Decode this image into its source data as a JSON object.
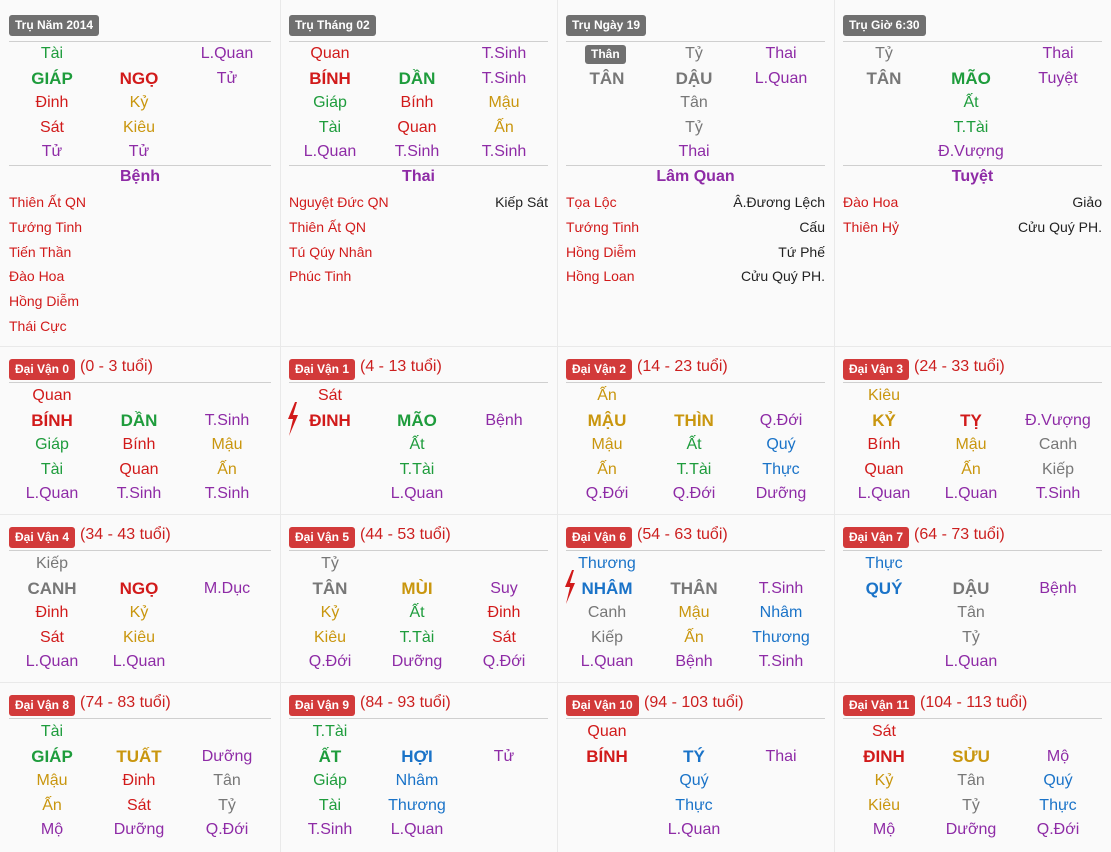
{
  "colors": {
    "green": "#1e9c3c",
    "red": "#d11a1a",
    "gold": "#c9960e",
    "purple": "#8e2ba6",
    "blue": "#1a73c8",
    "gray": "#777777",
    "black": "#222222",
    "phase": "#8e2ba6"
  },
  "pillars": [
    {
      "title": "Trụ Năm 2014",
      "rows": [
        [
          {
            "t": "Tài",
            "c": "green"
          },
          null,
          {
            "t": "L.Quan",
            "c": "purple"
          }
        ],
        [
          {
            "t": "GIÁP",
            "c": "green",
            "b": true
          },
          {
            "t": "NGỌ",
            "c": "red",
            "b": true
          },
          {
            "t": "Tử",
            "c": "purple"
          }
        ],
        [
          {
            "t": "Đinh",
            "c": "red"
          },
          {
            "t": "Kỷ",
            "c": "gold"
          },
          null
        ],
        [
          {
            "t": "Sát",
            "c": "red"
          },
          {
            "t": "Kiêu",
            "c": "gold"
          },
          null
        ],
        [
          {
            "t": "Tử",
            "c": "purple"
          },
          {
            "t": "Tử",
            "c": "purple"
          },
          null
        ]
      ],
      "phase": "Bệnh",
      "left_stars": [
        "Thiên Ất QN",
        "Tướng Tinh",
        "Tiến Thần",
        "Đào Hoa",
        "Hồng Diễm",
        "Thái Cực"
      ],
      "right_stars": []
    },
    {
      "title": "Trụ Tháng 02",
      "rows": [
        [
          {
            "t": "Quan",
            "c": "red"
          },
          null,
          {
            "t": "T.Sinh",
            "c": "purple"
          }
        ],
        [
          {
            "t": "BÍNH",
            "c": "red",
            "b": true
          },
          {
            "t": "DẦN",
            "c": "green",
            "b": true
          },
          {
            "t": "T.Sinh",
            "c": "purple"
          }
        ],
        [
          {
            "t": "Giáp",
            "c": "green"
          },
          {
            "t": "Bính",
            "c": "red"
          },
          {
            "t": "Mậu",
            "c": "gold"
          }
        ],
        [
          {
            "t": "Tài",
            "c": "green"
          },
          {
            "t": "Quan",
            "c": "red"
          },
          {
            "t": "Ấn",
            "c": "gold"
          }
        ],
        [
          {
            "t": "L.Quan",
            "c": "purple"
          },
          {
            "t": "T.Sinh",
            "c": "purple"
          },
          {
            "t": "T.Sinh",
            "c": "purple"
          }
        ]
      ],
      "phase": "Thai",
      "left_stars": [
        "Nguyệt Đức QN",
        "Thiên Ất QN",
        "Tú Qúy Nhân",
        "Phúc Tinh"
      ],
      "right_stars": [
        "Kiếp Sát"
      ]
    },
    {
      "title": "Trụ Ngày 19",
      "than": "Thân",
      "rows": [
        [
          null,
          {
            "t": "Tỷ",
            "c": "gray"
          },
          {
            "t": "Thai",
            "c": "purple"
          }
        ],
        [
          {
            "t": "TÂN",
            "c": "gray",
            "b": true
          },
          {
            "t": "DẬU",
            "c": "gray",
            "b": true
          },
          {
            "t": "L.Quan",
            "c": "purple"
          }
        ],
        [
          null,
          {
            "t": "Tân",
            "c": "gray"
          },
          null
        ],
        [
          null,
          {
            "t": "Tỷ",
            "c": "gray"
          },
          null
        ],
        [
          null,
          {
            "t": "Thai",
            "c": "purple"
          },
          null
        ]
      ],
      "phase": "Lâm Quan",
      "left_stars": [
        "Tọa Lộc",
        "Tướng Tinh",
        "Hồng Diễm",
        "Hồng Loan"
      ],
      "right_stars": [
        "Â.Đương Lệch",
        "Cấu",
        "Tứ Phế",
        "Cửu Quý PH."
      ]
    },
    {
      "title": "Trụ Giờ 6:30",
      "rows": [
        [
          {
            "t": "Tỷ",
            "c": "gray"
          },
          null,
          {
            "t": "Thai",
            "c": "purple"
          }
        ],
        [
          {
            "t": "TÂN",
            "c": "gray",
            "b": true
          },
          {
            "t": "MÃO",
            "c": "green",
            "b": true
          },
          {
            "t": "Tuyệt",
            "c": "purple"
          }
        ],
        [
          null,
          {
            "t": "Ất",
            "c": "green"
          },
          null
        ],
        [
          null,
          {
            "t": "T.Tài",
            "c": "green"
          },
          null
        ],
        [
          null,
          {
            "t": "Đ.Vượng",
            "c": "purple"
          },
          null
        ]
      ],
      "phase": "Tuyệt",
      "left_stars": [
        "Đào Hoa",
        "Thiên Hỷ"
      ],
      "right_stars": [
        "Giảo",
        "Cửu Quý PH."
      ]
    }
  ],
  "dai_van": [
    {
      "title": "Đại Vận 0",
      "age": "(0 - 3 tuổi)",
      "bolt": false,
      "rows": [
        [
          {
            "t": "Quan",
            "c": "red"
          },
          null,
          null
        ],
        [
          {
            "t": "BÍNH",
            "c": "red",
            "b": true
          },
          {
            "t": "DẦN",
            "c": "green",
            "b": true
          },
          {
            "t": "T.Sinh",
            "c": "purple"
          }
        ],
        [
          {
            "t": "Giáp",
            "c": "green"
          },
          {
            "t": "Bính",
            "c": "red"
          },
          {
            "t": "Mậu",
            "c": "gold"
          }
        ],
        [
          {
            "t": "Tài",
            "c": "green"
          },
          {
            "t": "Quan",
            "c": "red"
          },
          {
            "t": "Ấn",
            "c": "gold"
          }
        ],
        [
          {
            "t": "L.Quan",
            "c": "purple"
          },
          {
            "t": "T.Sinh",
            "c": "purple"
          },
          {
            "t": "T.Sinh",
            "c": "purple"
          }
        ]
      ]
    },
    {
      "title": "Đại Vận 1",
      "age": "(4 - 13 tuổi)",
      "bolt": true,
      "rows": [
        [
          {
            "t": "Sát",
            "c": "red"
          },
          null,
          null
        ],
        [
          {
            "t": "ĐINH",
            "c": "red",
            "b": true
          },
          {
            "t": "MÃO",
            "c": "green",
            "b": true
          },
          {
            "t": "Bệnh",
            "c": "purple"
          }
        ],
        [
          null,
          {
            "t": "Ất",
            "c": "green"
          },
          null
        ],
        [
          null,
          {
            "t": "T.Tài",
            "c": "green"
          },
          null
        ],
        [
          null,
          {
            "t": "L.Quan",
            "c": "purple"
          },
          null
        ]
      ]
    },
    {
      "title": "Đại Vận 2",
      "age": "(14 - 23 tuổi)",
      "bolt": false,
      "rows": [
        [
          {
            "t": "Ấn",
            "c": "gold"
          },
          null,
          null
        ],
        [
          {
            "t": "MẬU",
            "c": "gold",
            "b": true
          },
          {
            "t": "THÌN",
            "c": "gold",
            "b": true
          },
          {
            "t": "Q.Đới",
            "c": "purple"
          }
        ],
        [
          {
            "t": "Mậu",
            "c": "gold"
          },
          {
            "t": "Ất",
            "c": "green"
          },
          {
            "t": "Quý",
            "c": "blue"
          }
        ],
        [
          {
            "t": "Ấn",
            "c": "gold"
          },
          {
            "t": "T.Tài",
            "c": "green"
          },
          {
            "t": "Thực",
            "c": "blue"
          }
        ],
        [
          {
            "t": "Q.Đới",
            "c": "purple"
          },
          {
            "t": "Q.Đới",
            "c": "purple"
          },
          {
            "t": "Dưỡng",
            "c": "purple"
          }
        ]
      ]
    },
    {
      "title": "Đại Vận 3",
      "age": "(24 - 33 tuổi)",
      "bolt": false,
      "rows": [
        [
          {
            "t": "Kiêu",
            "c": "gold"
          },
          null,
          null
        ],
        [
          {
            "t": "KỶ",
            "c": "gold",
            "b": true
          },
          {
            "t": "TỴ",
            "c": "red",
            "b": true
          },
          {
            "t": "Đ.Vượng",
            "c": "purple"
          }
        ],
        [
          {
            "t": "Bính",
            "c": "red"
          },
          {
            "t": "Mậu",
            "c": "gold"
          },
          {
            "t": "Canh",
            "c": "gray"
          }
        ],
        [
          {
            "t": "Quan",
            "c": "red"
          },
          {
            "t": "Ấn",
            "c": "gold"
          },
          {
            "t": "Kiếp",
            "c": "gray"
          }
        ],
        [
          {
            "t": "L.Quan",
            "c": "purple"
          },
          {
            "t": "L.Quan",
            "c": "purple"
          },
          {
            "t": "T.Sinh",
            "c": "purple"
          }
        ]
      ]
    },
    {
      "title": "Đại Vận 4",
      "age": "(34 - 43 tuổi)",
      "bolt": false,
      "rows": [
        [
          {
            "t": "Kiếp",
            "c": "gray"
          },
          null,
          null
        ],
        [
          {
            "t": "CANH",
            "c": "gray",
            "b": true
          },
          {
            "t": "NGỌ",
            "c": "red",
            "b": true
          },
          {
            "t": "M.Dục",
            "c": "purple"
          }
        ],
        [
          {
            "t": "Đinh",
            "c": "red"
          },
          {
            "t": "Kỷ",
            "c": "gold"
          },
          null
        ],
        [
          {
            "t": "Sát",
            "c": "red"
          },
          {
            "t": "Kiêu",
            "c": "gold"
          },
          null
        ],
        [
          {
            "t": "L.Quan",
            "c": "purple"
          },
          {
            "t": "L.Quan",
            "c": "purple"
          },
          null
        ]
      ]
    },
    {
      "title": "Đại Vận 5",
      "age": "(44 - 53 tuổi)",
      "bolt": false,
      "rows": [
        [
          {
            "t": "Tỷ",
            "c": "gray"
          },
          null,
          null
        ],
        [
          {
            "t": "TÂN",
            "c": "gray",
            "b": true
          },
          {
            "t": "MÙI",
            "c": "gold",
            "b": true
          },
          {
            "t": "Suy",
            "c": "purple"
          }
        ],
        [
          {
            "t": "Kỷ",
            "c": "gold"
          },
          {
            "t": "Ất",
            "c": "green"
          },
          {
            "t": "Đinh",
            "c": "red"
          }
        ],
        [
          {
            "t": "Kiêu",
            "c": "gold"
          },
          {
            "t": "T.Tài",
            "c": "green"
          },
          {
            "t": "Sát",
            "c": "red"
          }
        ],
        [
          {
            "t": "Q.Đới",
            "c": "purple"
          },
          {
            "t": "Dưỡng",
            "c": "purple"
          },
          {
            "t": "Q.Đới",
            "c": "purple"
          }
        ]
      ]
    },
    {
      "title": "Đại Vận 6",
      "age": "(54 - 63 tuổi)",
      "bolt": true,
      "rows": [
        [
          {
            "t": "Thương",
            "c": "blue"
          },
          null,
          null
        ],
        [
          {
            "t": "NHÂM",
            "c": "blue",
            "b": true
          },
          {
            "t": "THÂN",
            "c": "gray",
            "b": true
          },
          {
            "t": "T.Sinh",
            "c": "purple"
          }
        ],
        [
          {
            "t": "Canh",
            "c": "gray"
          },
          {
            "t": "Mậu",
            "c": "gold"
          },
          {
            "t": "Nhâm",
            "c": "blue"
          }
        ],
        [
          {
            "t": "Kiếp",
            "c": "gray"
          },
          {
            "t": "Ấn",
            "c": "gold"
          },
          {
            "t": "Thương",
            "c": "blue"
          }
        ],
        [
          {
            "t": "L.Quan",
            "c": "purple"
          },
          {
            "t": "Bệnh",
            "c": "purple"
          },
          {
            "t": "T.Sinh",
            "c": "purple"
          }
        ]
      ]
    },
    {
      "title": "Đại Vận 7",
      "age": "(64 - 73 tuổi)",
      "bolt": false,
      "rows": [
        [
          {
            "t": "Thực",
            "c": "blue"
          },
          null,
          null
        ],
        [
          {
            "t": "QUÝ",
            "c": "blue",
            "b": true
          },
          {
            "t": "DẬU",
            "c": "gray",
            "b": true
          },
          {
            "t": "Bệnh",
            "c": "purple"
          }
        ],
        [
          null,
          {
            "t": "Tân",
            "c": "gray"
          },
          null
        ],
        [
          null,
          {
            "t": "Tỷ",
            "c": "gray"
          },
          null
        ],
        [
          null,
          {
            "t": "L.Quan",
            "c": "purple"
          },
          null
        ]
      ]
    },
    {
      "title": "Đại Vận 8",
      "age": "(74 - 83 tuổi)",
      "bolt": false,
      "rows": [
        [
          {
            "t": "Tài",
            "c": "green"
          },
          null,
          null
        ],
        [
          {
            "t": "GIÁP",
            "c": "green",
            "b": true
          },
          {
            "t": "TUẤT",
            "c": "gold",
            "b": true
          },
          {
            "t": "Dưỡng",
            "c": "purple"
          }
        ],
        [
          {
            "t": "Mậu",
            "c": "gold"
          },
          {
            "t": "Đinh",
            "c": "red"
          },
          {
            "t": "Tân",
            "c": "gray"
          }
        ],
        [
          {
            "t": "Ấn",
            "c": "gold"
          },
          {
            "t": "Sát",
            "c": "red"
          },
          {
            "t": "Tỷ",
            "c": "gray"
          }
        ],
        [
          {
            "t": "Mộ",
            "c": "purple"
          },
          {
            "t": "Dưỡng",
            "c": "purple"
          },
          {
            "t": "Q.Đới",
            "c": "purple"
          }
        ]
      ]
    },
    {
      "title": "Đại Vận 9",
      "age": "(84 - 93 tuổi)",
      "bolt": false,
      "rows": [
        [
          {
            "t": "T.Tài",
            "c": "green"
          },
          null,
          null
        ],
        [
          {
            "t": "ẤT",
            "c": "green",
            "b": true
          },
          {
            "t": "HỢI",
            "c": "blue",
            "b": true
          },
          {
            "t": "Tử",
            "c": "purple"
          }
        ],
        [
          {
            "t": "Giáp",
            "c": "green"
          },
          {
            "t": "Nhâm",
            "c": "blue"
          },
          null
        ],
        [
          {
            "t": "Tài",
            "c": "green"
          },
          {
            "t": "Thương",
            "c": "blue"
          },
          null
        ],
        [
          {
            "t": "T.Sinh",
            "c": "purple"
          },
          {
            "t": "L.Quan",
            "c": "purple"
          },
          null
        ]
      ]
    },
    {
      "title": "Đại Vận 10",
      "age": "(94 - 103 tuổi)",
      "bolt": false,
      "rows": [
        [
          {
            "t": "Quan",
            "c": "red"
          },
          null,
          null
        ],
        [
          {
            "t": "BÍNH",
            "c": "red",
            "b": true
          },
          {
            "t": "TÝ",
            "c": "blue",
            "b": true
          },
          {
            "t": "Thai",
            "c": "purple"
          }
        ],
        [
          null,
          {
            "t": "Quý",
            "c": "blue"
          },
          null
        ],
        [
          null,
          {
            "t": "Thực",
            "c": "blue"
          },
          null
        ],
        [
          null,
          {
            "t": "L.Quan",
            "c": "purple"
          },
          null
        ]
      ]
    },
    {
      "title": "Đại Vận 11",
      "age": "(104 - 113 tuổi)",
      "bolt": false,
      "rows": [
        [
          {
            "t": "Sát",
            "c": "red"
          },
          null,
          null
        ],
        [
          {
            "t": "ĐINH",
            "c": "red",
            "b": true
          },
          {
            "t": "SỬU",
            "c": "gold",
            "b": true
          },
          {
            "t": "Mộ",
            "c": "purple"
          }
        ],
        [
          {
            "t": "Kỷ",
            "c": "gold"
          },
          {
            "t": "Tân",
            "c": "gray"
          },
          {
            "t": "Quý",
            "c": "blue"
          }
        ],
        [
          {
            "t": "Kiêu",
            "c": "gold"
          },
          {
            "t": "Tỷ",
            "c": "gray"
          },
          {
            "t": "Thực",
            "c": "blue"
          }
        ],
        [
          {
            "t": "Mộ",
            "c": "purple"
          },
          {
            "t": "Dưỡng",
            "c": "purple"
          },
          {
            "t": "Q.Đới",
            "c": "purple"
          }
        ]
      ]
    }
  ]
}
